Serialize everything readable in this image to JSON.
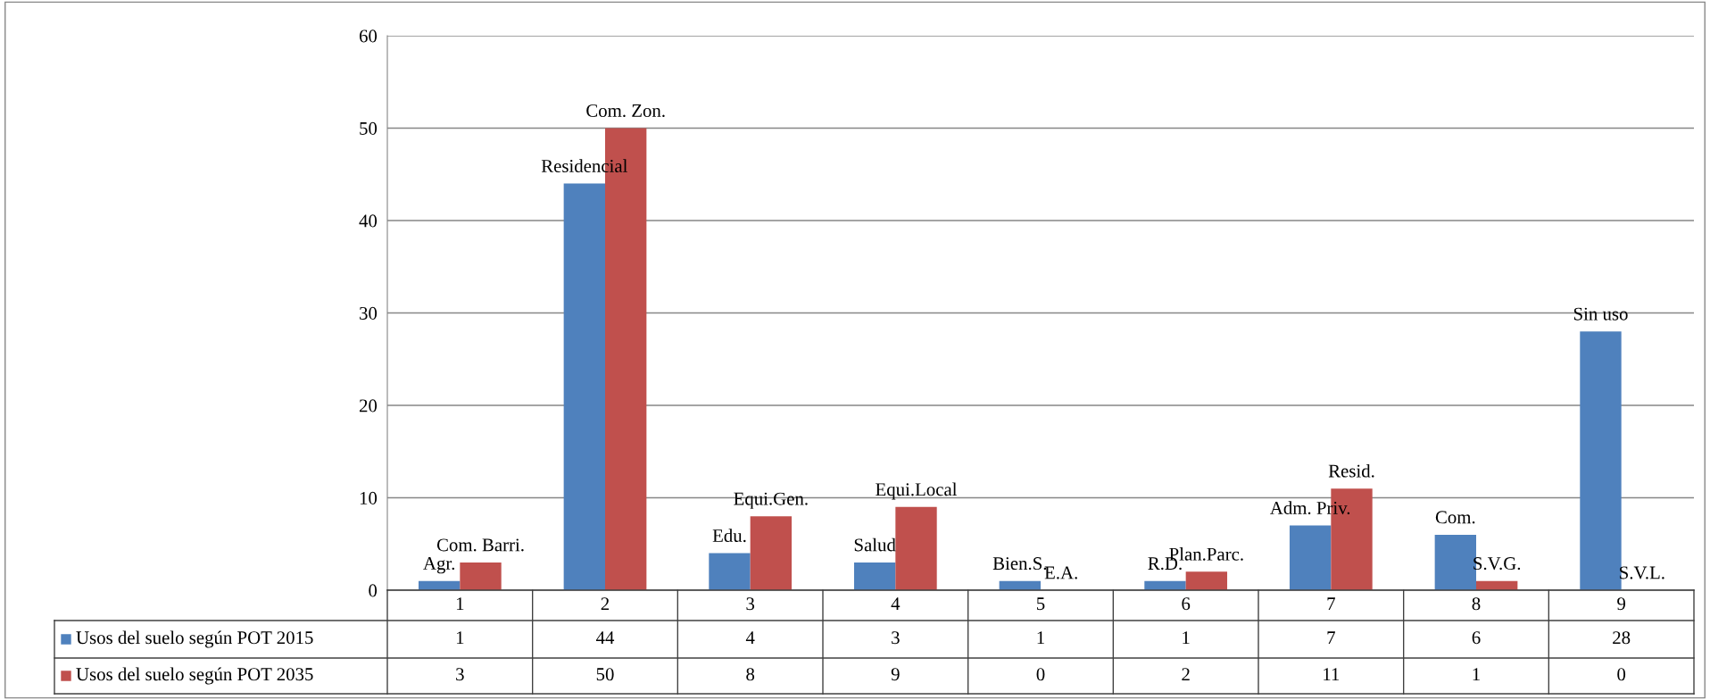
{
  "chart_data": {
    "type": "bar",
    "categories": [
      "1",
      "2",
      "3",
      "4",
      "5",
      "6",
      "7",
      "8",
      "9"
    ],
    "series": [
      {
        "name": "Usos del suelo según POT 2015",
        "color": "#4f81bd",
        "values": [
          1,
          44,
          4,
          3,
          1,
          1,
          7,
          6,
          28
        ]
      },
      {
        "name": "Usos del suelo según POT 2035",
        "color": "#c0504d",
        "values": [
          3,
          50,
          8,
          9,
          0,
          2,
          11,
          1,
          0
        ]
      }
    ],
    "ylim": [
      0,
      60
    ],
    "yticks": [
      0,
      10,
      20,
      30,
      40,
      50,
      60
    ],
    "grid": "y",
    "legend": "left",
    "data_labels": true,
    "annotations": [
      {
        "text": "Agr.",
        "x": "1",
        "y": 1
      },
      {
        "text": "Com. Barri.",
        "x": "1",
        "y": 3
      },
      {
        "text": "Residencial",
        "x": "2",
        "y": 44
      },
      {
        "text": "Com. Zon.",
        "x": "2",
        "y": 50
      },
      {
        "text": "Edu.",
        "x": "3",
        "y": 4
      },
      {
        "text": "Equi.Gen.",
        "x": "3",
        "y": 8
      },
      {
        "text": "Salud",
        "x": "4",
        "y": 3
      },
      {
        "text": "Equi.Local",
        "x": "4",
        "y": 9
      },
      {
        "text": "Bien.S.",
        "x": "5",
        "y": 1
      },
      {
        "text": "E.A.",
        "x": "5",
        "y": 0
      },
      {
        "text": "R.D.",
        "x": "6",
        "y": 1
      },
      {
        "text": "Plan.Parc.",
        "x": "6",
        "y": 2
      },
      {
        "text": "Adm. Priv.",
        "x": "7",
        "y": 7
      },
      {
        "text": "Resid.",
        "x": "7",
        "y": 11
      },
      {
        "text": "Com.",
        "x": "8",
        "y": 6
      },
      {
        "text": "S.V.G.",
        "x": "8",
        "y": 1
      },
      {
        "text": "Sin uso",
        "x": "9",
        "y": 28
      },
      {
        "text": "S.V.L.",
        "x": "9",
        "y": 0
      }
    ]
  }
}
